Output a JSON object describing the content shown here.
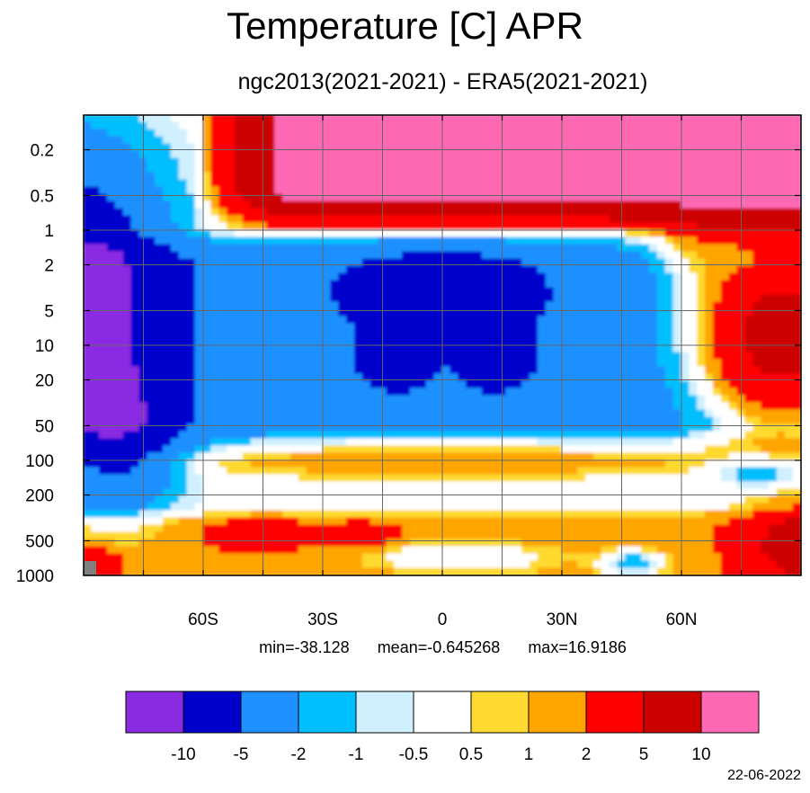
{
  "chart_data": {
    "type": "heatmap",
    "title": "Temperature [C] APR",
    "subtitle": "ngc2013(2021-2021) - ERA5(2021-2021)",
    "x_axis": {
      "range": [
        -90,
        90
      ],
      "ticks": [
        {
          "value": -60,
          "label": "60S"
        },
        {
          "value": -30,
          "label": "30S"
        },
        {
          "value": 0,
          "label": "0"
        },
        {
          "value": 30,
          "label": "30N"
        },
        {
          "value": 60,
          "label": "60N"
        }
      ]
    },
    "y_axis": {
      "scale": "log",
      "reversed": true,
      "range": [
        1000,
        0.1
      ],
      "ticks": [
        {
          "value": 0.2,
          "label": "0.2"
        },
        {
          "value": 0.5,
          "label": "0.5"
        },
        {
          "value": 1,
          "label": "1"
        },
        {
          "value": 2,
          "label": "2"
        },
        {
          "value": 5,
          "label": "5"
        },
        {
          "value": 10,
          "label": "10"
        },
        {
          "value": 20,
          "label": "20"
        },
        {
          "value": 50,
          "label": "50"
        },
        {
          "value": 100,
          "label": "100"
        },
        {
          "value": 200,
          "label": "200"
        },
        {
          "value": 500,
          "label": "500"
        },
        {
          "value": 1000,
          "label": "1000"
        }
      ]
    },
    "grid": true,
    "levels": [
      -10,
      -5,
      -2,
      -1,
      -0.5,
      0.5,
      1,
      2,
      5,
      10
    ],
    "level_labels": [
      "-10",
      "-5",
      "-2",
      "-1",
      "-0.5",
      "0.5",
      "1",
      "2",
      "5",
      "10"
    ],
    "colors": [
      "#8a2be2",
      "#0000cd",
      "#1e90ff",
      "#00bfff",
      "#d0f0ff",
      "#ffffff",
      "#ffd92f",
      "#ffa500",
      "#ff0000",
      "#cd0000",
      "#ff69b4"
    ],
    "missing_color": "#808080",
    "legend_position": "bottom",
    "stats": {
      "min": "min=-38.128",
      "mean": "mean=-0.645268",
      "max": "max=16.9186"
    },
    "date": "22-06-2022"
  }
}
